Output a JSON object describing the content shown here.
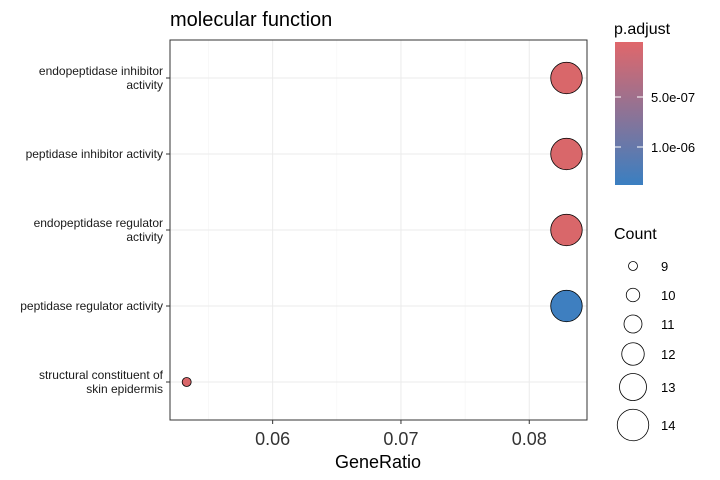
{
  "chart_data": {
    "type": "scatter",
    "title": "molecular function",
    "xlabel": "GeneRatio",
    "ylabel": "",
    "xlim": [
      0.052,
      0.0845
    ],
    "x_ticks": [
      0.06,
      0.07,
      0.08
    ],
    "x_tick_labels": [
      "0.06",
      "0.07",
      "0.08"
    ],
    "categories": [
      [
        "endopeptidase inhibitor",
        "activity"
      ],
      [
        "peptidase inhibitor activity"
      ],
      [
        "endopeptidase regulator",
        "activity"
      ],
      [
        "peptidase regulator activity"
      ],
      [
        "structural constituent of",
        "skin epidermis"
      ]
    ],
    "points": [
      {
        "x": 0.0829,
        "count": 14,
        "p_adjust": 3e-07,
        "color": "#d9676a"
      },
      {
        "x": 0.0829,
        "count": 14,
        "p_adjust": 3e-07,
        "color": "#d9676a"
      },
      {
        "x": 0.0829,
        "count": 14,
        "p_adjust": 3e-07,
        "color": "#d9676a"
      },
      {
        "x": 0.0829,
        "count": 14,
        "p_adjust": 1.4e-06,
        "color": "#3e7fc0"
      },
      {
        "x": 0.0533,
        "count": 9,
        "p_adjust": 3e-07,
        "color": "#d9676a"
      }
    ],
    "grid": true,
    "legend_color": {
      "title": "p.adjust",
      "labels": [
        "5.0e-07",
        "1.0e-06"
      ],
      "gradient_top": "#e0676b",
      "gradient_bottom": "#3a7fc1"
    },
    "legend_size": {
      "title": "Count",
      "labels": [
        "9",
        "10",
        "11",
        "12",
        "13",
        "14"
      ]
    }
  }
}
